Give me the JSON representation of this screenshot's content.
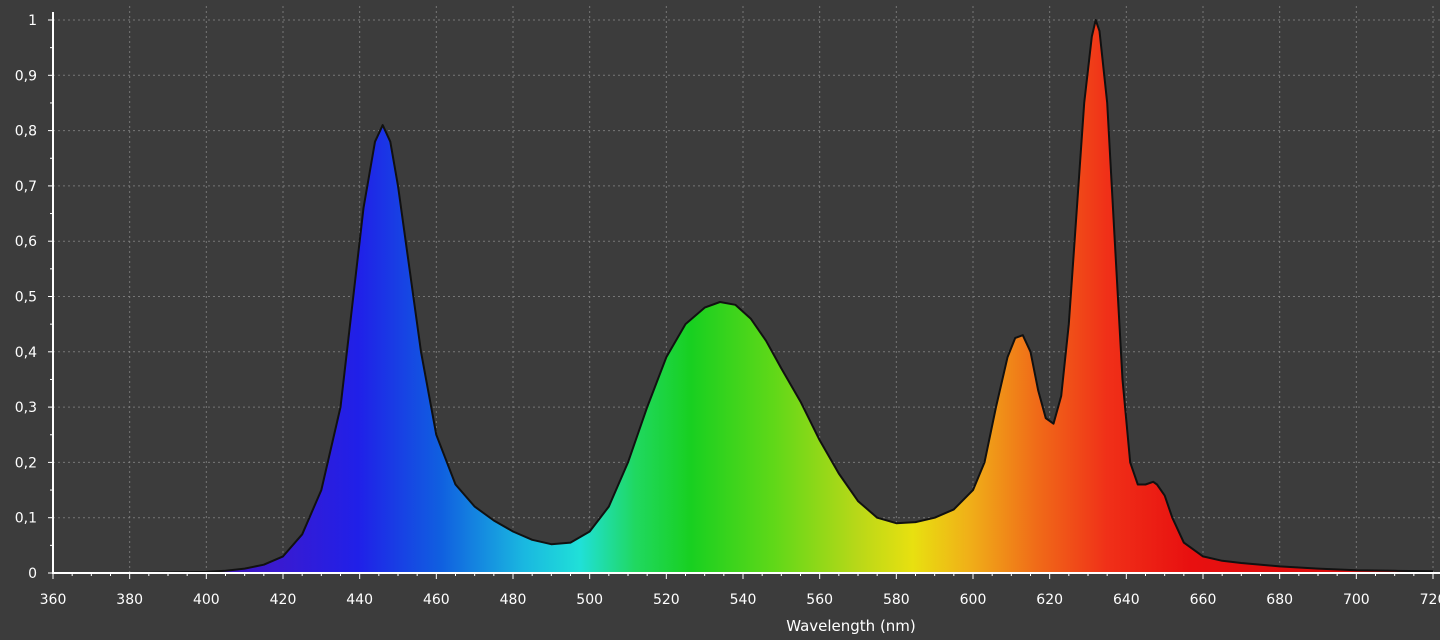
{
  "chart_data": {
    "type": "area",
    "title": "",
    "xlabel": "Wavelength (nm)",
    "ylabel": "",
    "xlim": [
      360,
      720
    ],
    "ylim": [
      0,
      1
    ],
    "grid": true,
    "legend": "none",
    "x_ticks": [
      {
        "value": 360,
        "label": "360"
      },
      {
        "value": 380,
        "label": "380"
      },
      {
        "value": 400,
        "label": "400"
      },
      {
        "value": 420,
        "label": "420"
      },
      {
        "value": 440,
        "label": "440"
      },
      {
        "value": 460,
        "label": "460"
      },
      {
        "value": 480,
        "label": "480"
      },
      {
        "value": 500,
        "label": "500"
      },
      {
        "value": 520,
        "label": "520"
      },
      {
        "value": 540,
        "label": "540"
      },
      {
        "value": 560,
        "label": "560"
      },
      {
        "value": 580,
        "label": "580"
      },
      {
        "value": 600,
        "label": "600"
      },
      {
        "value": 620,
        "label": "620"
      },
      {
        "value": 640,
        "label": "640"
      },
      {
        "value": 660,
        "label": "660"
      },
      {
        "value": 680,
        "label": "680"
      },
      {
        "value": 700,
        "label": "700"
      },
      {
        "value": 720,
        "label": "720"
      }
    ],
    "y_ticks": [
      {
        "value": 0,
        "label": "0"
      },
      {
        "value": 0.1,
        "label": "0,1"
      },
      {
        "value": 0.2,
        "label": "0,2"
      },
      {
        "value": 0.3,
        "label": "0,3"
      },
      {
        "value": 0.4,
        "label": "0,4"
      },
      {
        "value": 0.5,
        "label": "0,5"
      },
      {
        "value": 0.6,
        "label": "0,6"
      },
      {
        "value": 0.7,
        "label": "0,7"
      },
      {
        "value": 0.8,
        "label": "0,8"
      },
      {
        "value": 0.9,
        "label": "0,9"
      },
      {
        "value": 1,
        "label": "1"
      }
    ],
    "series": [
      {
        "x": [
          360,
          380,
          400,
          405,
          410,
          415,
          420,
          425,
          430,
          435,
          438,
          441,
          444,
          446,
          448,
          450,
          453,
          456,
          460,
          465,
          470,
          475,
          480,
          485,
          490,
          495,
          500,
          505,
          510,
          515,
          520,
          525,
          530,
          534,
          538,
          542,
          546,
          550,
          555,
          560,
          565,
          570,
          575,
          580,
          585,
          590,
          595,
          600,
          603,
          606,
          609,
          611,
          613,
          615,
          617,
          619,
          621,
          623,
          625,
          627,
          629,
          631,
          632,
          633,
          635,
          637,
          639,
          641,
          643,
          645,
          647,
          648,
          650,
          652,
          655,
          660,
          665,
          670,
          680,
          690,
          700,
          710,
          720
        ],
        "values": [
          0,
          0,
          0.002,
          0.004,
          0.008,
          0.015,
          0.03,
          0.07,
          0.15,
          0.3,
          0.48,
          0.66,
          0.78,
          0.81,
          0.78,
          0.7,
          0.55,
          0.4,
          0.25,
          0.16,
          0.12,
          0.095,
          0.075,
          0.06,
          0.052,
          0.055,
          0.075,
          0.12,
          0.2,
          0.3,
          0.39,
          0.45,
          0.48,
          0.49,
          0.485,
          0.46,
          0.42,
          0.37,
          0.31,
          0.24,
          0.18,
          0.13,
          0.1,
          0.09,
          0.092,
          0.1,
          0.115,
          0.15,
          0.2,
          0.3,
          0.39,
          0.425,
          0.43,
          0.4,
          0.33,
          0.28,
          0.27,
          0.32,
          0.45,
          0.65,
          0.85,
          0.97,
          1.0,
          0.98,
          0.85,
          0.6,
          0.35,
          0.2,
          0.16,
          0.16,
          0.165,
          0.16,
          0.14,
          0.1,
          0.055,
          0.03,
          0.022,
          0.018,
          0.012,
          0.008,
          0.005,
          0.004,
          0.003
        ]
      }
    ],
    "spectrum_colors": [
      {
        "at": 0.0,
        "color": "#3a0070"
      },
      {
        "at": 0.16,
        "color": "#3a1ad0"
      },
      {
        "at": 0.22,
        "color": "#2020e8"
      },
      {
        "at": 0.28,
        "color": "#1060e0"
      },
      {
        "at": 0.34,
        "color": "#1ab8e0"
      },
      {
        "at": 0.38,
        "color": "#20e0d8"
      },
      {
        "at": 0.42,
        "color": "#20d860"
      },
      {
        "at": 0.46,
        "color": "#18d020"
      },
      {
        "at": 0.52,
        "color": "#60d818"
      },
      {
        "at": 0.58,
        "color": "#b8d818"
      },
      {
        "at": 0.62,
        "color": "#e8e010"
      },
      {
        "at": 0.66,
        "color": "#f0b018"
      },
      {
        "at": 0.71,
        "color": "#f06a18"
      },
      {
        "at": 0.76,
        "color": "#f03018"
      },
      {
        "at": 0.82,
        "color": "#e81010"
      },
      {
        "at": 1.0,
        "color": "#d00c0c"
      }
    ],
    "colors": {
      "background": "#3c3c3c",
      "axis": "#ffffff",
      "grid": "#8a8a8a",
      "outline": "#111111"
    }
  }
}
